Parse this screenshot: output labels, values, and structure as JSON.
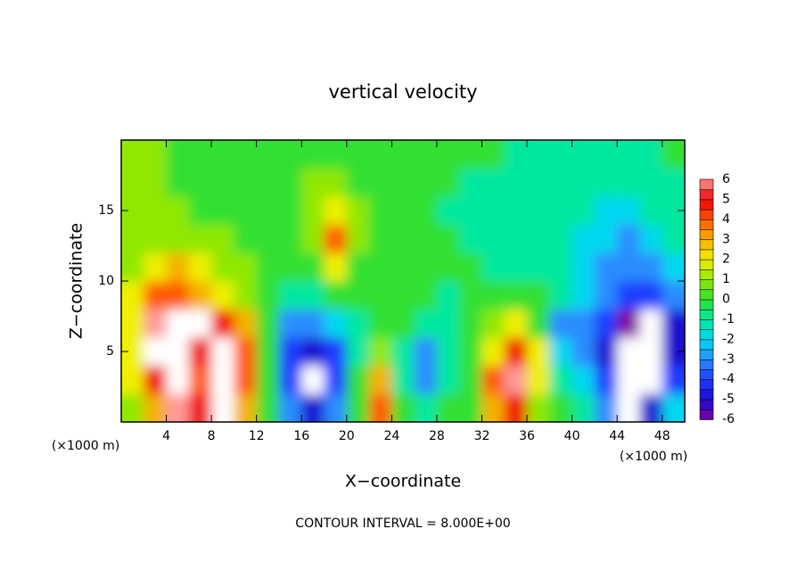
{
  "chart_data": {
    "type": "heatmap",
    "title": "vertical velocity",
    "x_label": "X−coordinate",
    "y_label": "Z−coordinate",
    "x_unit": "(×1000 m)",
    "y_unit": "(×1000 m)",
    "annotation": "CONTOUR INTERVAL = 8.000E+00",
    "xlim": [
      0,
      50
    ],
    "ylim": [
      0,
      20
    ],
    "xticks": [
      4,
      8,
      12,
      16,
      20,
      24,
      28,
      32,
      36,
      40,
      44,
      48
    ],
    "yticks": [
      5,
      10,
      15
    ],
    "x": [
      1,
      3,
      5,
      7,
      9,
      11,
      13,
      15,
      17,
      19,
      21,
      23,
      25,
      27,
      29,
      31,
      33,
      35,
      37,
      39,
      41,
      43,
      45,
      47,
      49
    ],
    "y": [
      1,
      3,
      5,
      7,
      9,
      11,
      13,
      15,
      17,
      19
    ],
    "z": [
      [
        1,
        3,
        6,
        5,
        7,
        3,
        0,
        -3,
        -5,
        -3,
        0,
        4,
        0,
        -1,
        0,
        0,
        3,
        5,
        1,
        0,
        -1,
        -3,
        -7,
        -5,
        -2
      ],
      [
        2,
        5,
        7,
        4,
        7,
        4,
        0,
        -4,
        -7,
        -4,
        0,
        3,
        -1,
        -3,
        -1,
        0,
        4,
        6,
        2,
        -1,
        -2,
        -4,
        -7,
        -7,
        -4
      ],
      [
        2,
        7,
        7,
        5,
        7,
        4,
        0,
        -4,
        -5,
        -4,
        -1,
        1,
        -1,
        -3,
        -1,
        0,
        2,
        5,
        2,
        -2,
        -3,
        -5,
        -7,
        -7,
        -5
      ],
      [
        2,
        6,
        7,
        7,
        5,
        3,
        0,
        -3,
        -3,
        -2,
        -1,
        0,
        0,
        -1,
        -1,
        0,
        1,
        2,
        0,
        -3,
        -3,
        -4,
        -6,
        -7,
        -5
      ],
      [
        2,
        4,
        4,
        3,
        2,
        1,
        0,
        -1,
        -1,
        0,
        0,
        0,
        0,
        0,
        -1,
        0,
        0,
        0,
        0,
        -1,
        -2,
        -3,
        -4,
        -4,
        -3
      ],
      [
        1,
        2,
        3,
        2,
        1,
        1,
        0,
        0,
        0,
        2,
        0,
        0,
        0,
        0,
        0,
        0,
        -1,
        -1,
        -1,
        -1,
        -2,
        -3,
        -3,
        -3,
        -2
      ],
      [
        1,
        1,
        1,
        1,
        1,
        0,
        0,
        0,
        1,
        4,
        1,
        0,
        0,
        0,
        0,
        -1,
        -1,
        -1,
        -1,
        -1,
        -2,
        -2,
        -3,
        -2,
        -1
      ],
      [
        1,
        1,
        1,
        0,
        0,
        0,
        0,
        0,
        1,
        2,
        1,
        0,
        0,
        0,
        -1,
        -1,
        -1,
        -1,
        -1,
        -1,
        -1,
        -2,
        -2,
        -1,
        -1
      ],
      [
        1,
        1,
        0,
        0,
        0,
        0,
        0,
        0,
        1,
        1,
        0,
        0,
        0,
        0,
        0,
        -1,
        -1,
        -1,
        -1,
        -1,
        -1,
        -1,
        -1,
        -1,
        -1
      ],
      [
        1,
        1,
        0,
        0,
        0,
        0,
        0,
        0,
        0,
        0,
        0,
        0,
        0,
        0,
        0,
        0,
        0,
        -1,
        -1,
        -1,
        -1,
        -1,
        -1,
        -1,
        0
      ]
    ],
    "colorbar_ticks": [
      6,
      5,
      4,
      3,
      2,
      1,
      0,
      -1,
      -2,
      -3,
      -4,
      -5,
      -6
    ],
    "colorbar_colors": [
      "#ff9a9a",
      "#f00000",
      "#ff5a00",
      "#f5b000",
      "#f0f000",
      "#90e800",
      "#30e030",
      "#00e8a0",
      "#00d8f0",
      "#2a8cff",
      "#1e3cff",
      "#1a0ad0",
      "#8000a0"
    ],
    "out_of_range_color": "#ffffff"
  }
}
